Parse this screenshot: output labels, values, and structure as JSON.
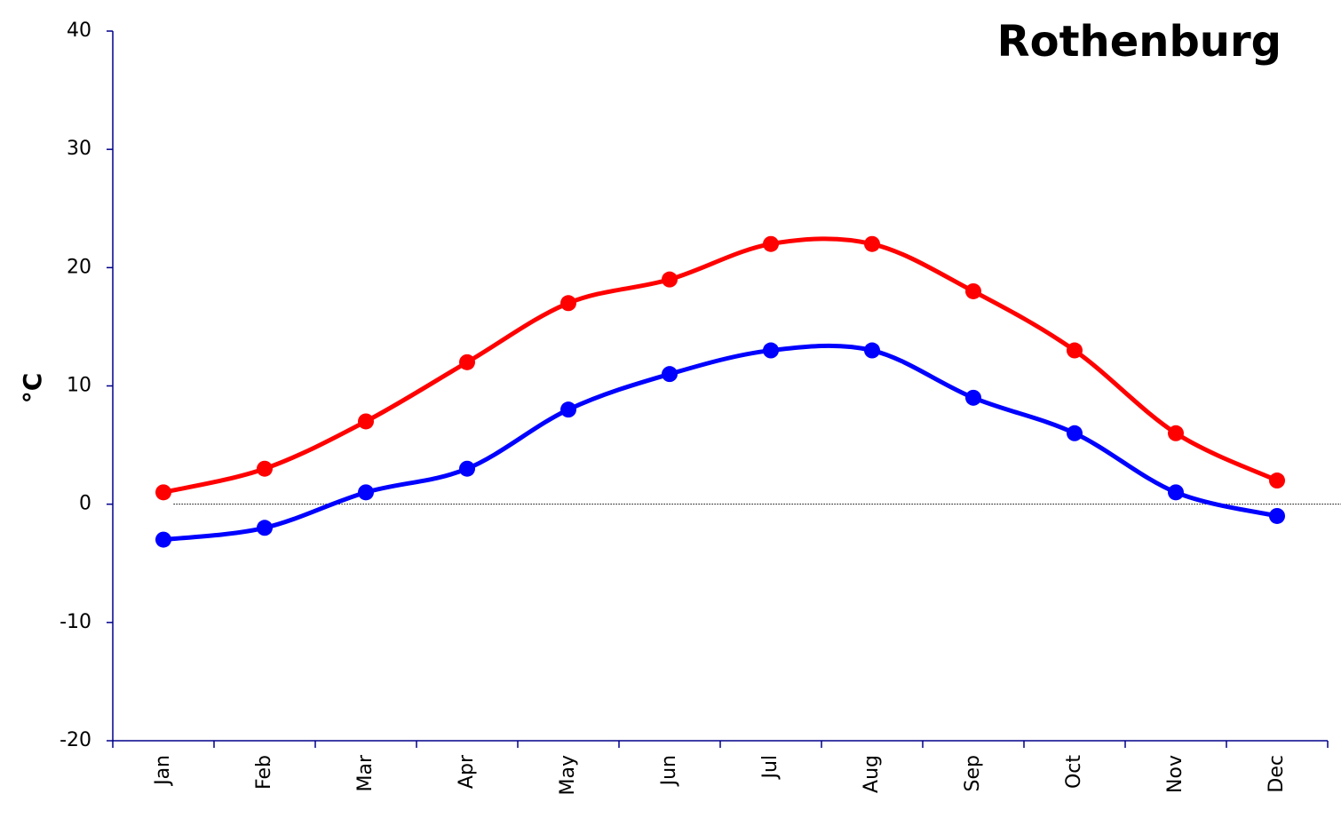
{
  "chart_data": {
    "type": "line",
    "title": "Rothenburg",
    "y_label": "°C",
    "categories": [
      "Jan",
      "Feb",
      "Mar",
      "Apr",
      "May",
      "Jun",
      "Jul",
      "Aug",
      "Sep",
      "Oct",
      "Nov",
      "Dec"
    ],
    "series": [
      {
        "color": "#ff0000",
        "values": [
          1,
          3,
          7,
          12,
          17,
          19,
          22,
          22,
          18,
          13,
          6,
          2
        ]
      },
      {
        "color": "#0000ff",
        "values": [
          -3,
          -2,
          1,
          3,
          8,
          11,
          13,
          13,
          9,
          6,
          1,
          -1
        ]
      }
    ],
    "ylim": [
      -20,
      40
    ],
    "yticks": [
      -20,
      -10,
      0,
      10,
      20,
      30,
      40
    ],
    "zero_line": true
  }
}
